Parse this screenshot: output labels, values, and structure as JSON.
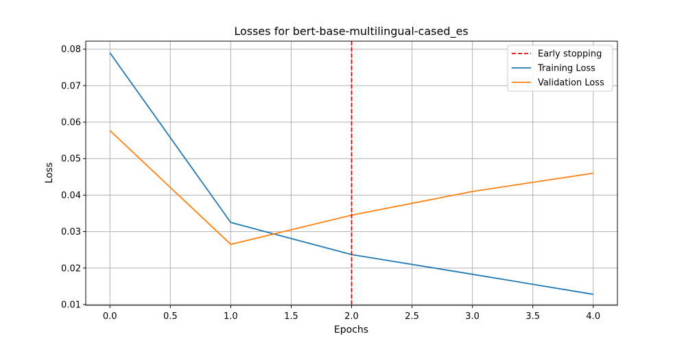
{
  "chart_data": {
    "type": "line",
    "title": "Losses for bert-base-multilingual-cased_es",
    "xlabel": "Epochs",
    "ylabel": "Loss",
    "xlim": [
      -0.2,
      4.2
    ],
    "ylim": [
      0.0098,
      0.0822
    ],
    "x_ticks": [
      0.0,
      0.5,
      1.0,
      1.5,
      2.0,
      2.5,
      3.0,
      3.5,
      4.0
    ],
    "x_tick_labels": [
      "0.0",
      "0.5",
      "1.0",
      "1.5",
      "2.0",
      "2.5",
      "3.0",
      "3.5",
      "4.0"
    ],
    "y_ticks": [
      0.01,
      0.02,
      0.03,
      0.04,
      0.05,
      0.06,
      0.07,
      0.08
    ],
    "y_tick_labels": [
      "0.01",
      "0.02",
      "0.03",
      "0.04",
      "0.05",
      "0.06",
      "0.07",
      "0.08"
    ],
    "grid": true,
    "legend_position": "top-right",
    "x": [
      0,
      1,
      2,
      3,
      4
    ],
    "series": [
      {
        "name": "Training Loss",
        "color": "#1f77b4",
        "values": [
          0.079,
          0.0325,
          0.0237,
          0.0183,
          0.0128
        ]
      },
      {
        "name": "Validation Loss",
        "color": "#ff7f0e",
        "values": [
          0.0577,
          0.0265,
          0.0345,
          0.041,
          0.046
        ]
      }
    ],
    "vline": {
      "name": "Early stopping",
      "x": 2.0,
      "color": "#ff0000",
      "style": "dashed"
    },
    "legend_order": [
      "Early stopping",
      "Training Loss",
      "Validation Loss"
    ]
  }
}
